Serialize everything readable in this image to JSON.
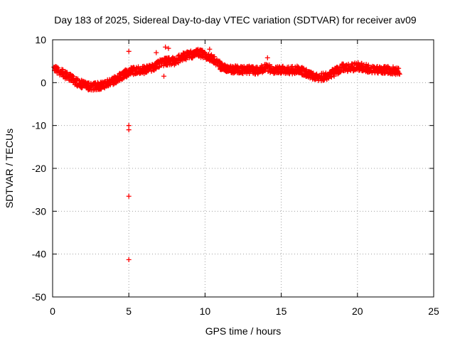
{
  "chart_data": {
    "type": "scatter",
    "title": "Day 183 of 2025, Sidereal Day-to-day VTEC variation (SDTVAR) for receiver av09",
    "xlabel": "GPS time / hours",
    "ylabel": "SDTVAR / TECUs",
    "xlim": [
      0,
      25
    ],
    "ylim": [
      -50,
      10
    ],
    "xticks": [
      0,
      5,
      10,
      15,
      20,
      25
    ],
    "yticks": [
      -50,
      -40,
      -30,
      -20,
      -10,
      0,
      10
    ],
    "grid": true,
    "marker": "plus",
    "color": "#ff0000",
    "series": [
      {
        "name": "SDTVAR",
        "trend": [
          [
            0.1,
            3.2
          ],
          [
            0.5,
            2.5
          ],
          [
            1.0,
            1.5
          ],
          [
            1.5,
            0.3
          ],
          [
            2.0,
            -0.5
          ],
          [
            2.5,
            -1.0
          ],
          [
            3.0,
            -0.8
          ],
          [
            3.5,
            -0.3
          ],
          [
            4.0,
            0.5
          ],
          [
            4.5,
            1.5
          ],
          [
            5.0,
            2.5
          ],
          [
            5.5,
            3.0
          ],
          [
            6.0,
            3.0
          ],
          [
            6.5,
            3.5
          ],
          [
            7.0,
            4.5
          ],
          [
            7.5,
            5.0
          ],
          [
            8.0,
            5.0
          ],
          [
            8.5,
            6.0
          ],
          [
            9.0,
            6.5
          ],
          [
            9.5,
            7.0
          ],
          [
            10.0,
            6.5
          ],
          [
            10.5,
            5.5
          ],
          [
            11.0,
            4.0
          ],
          [
            11.5,
            3.0
          ],
          [
            12.0,
            3.0
          ],
          [
            12.5,
            3.0
          ],
          [
            13.0,
            3.0
          ],
          [
            13.5,
            2.8
          ],
          [
            14.0,
            3.5
          ],
          [
            14.5,
            3.0
          ],
          [
            15.0,
            3.0
          ],
          [
            15.5,
            2.8
          ],
          [
            16.0,
            3.0
          ],
          [
            16.5,
            2.5
          ],
          [
            17.0,
            1.5
          ],
          [
            17.5,
            1.2
          ],
          [
            18.0,
            1.5
          ],
          [
            18.5,
            2.5
          ],
          [
            19.0,
            3.5
          ],
          [
            19.5,
            3.5
          ],
          [
            20.0,
            3.8
          ],
          [
            20.5,
            3.5
          ],
          [
            21.0,
            3.0
          ],
          [
            21.5,
            3.0
          ],
          [
            22.0,
            3.0
          ],
          [
            22.5,
            2.8
          ],
          [
            22.8,
            2.8
          ]
        ],
        "outliers": [
          [
            5.0,
            7.3
          ],
          [
            5.0,
            -10.0
          ],
          [
            5.0,
            -11.0
          ],
          [
            5.0,
            -26.5
          ],
          [
            5.0,
            -41.3
          ],
          [
            7.4,
            8.3
          ],
          [
            7.6,
            8.0
          ],
          [
            7.3,
            1.5
          ],
          [
            6.8,
            7.0
          ],
          [
            10.3,
            7.8
          ],
          [
            14.1,
            5.8
          ]
        ]
      }
    ]
  }
}
